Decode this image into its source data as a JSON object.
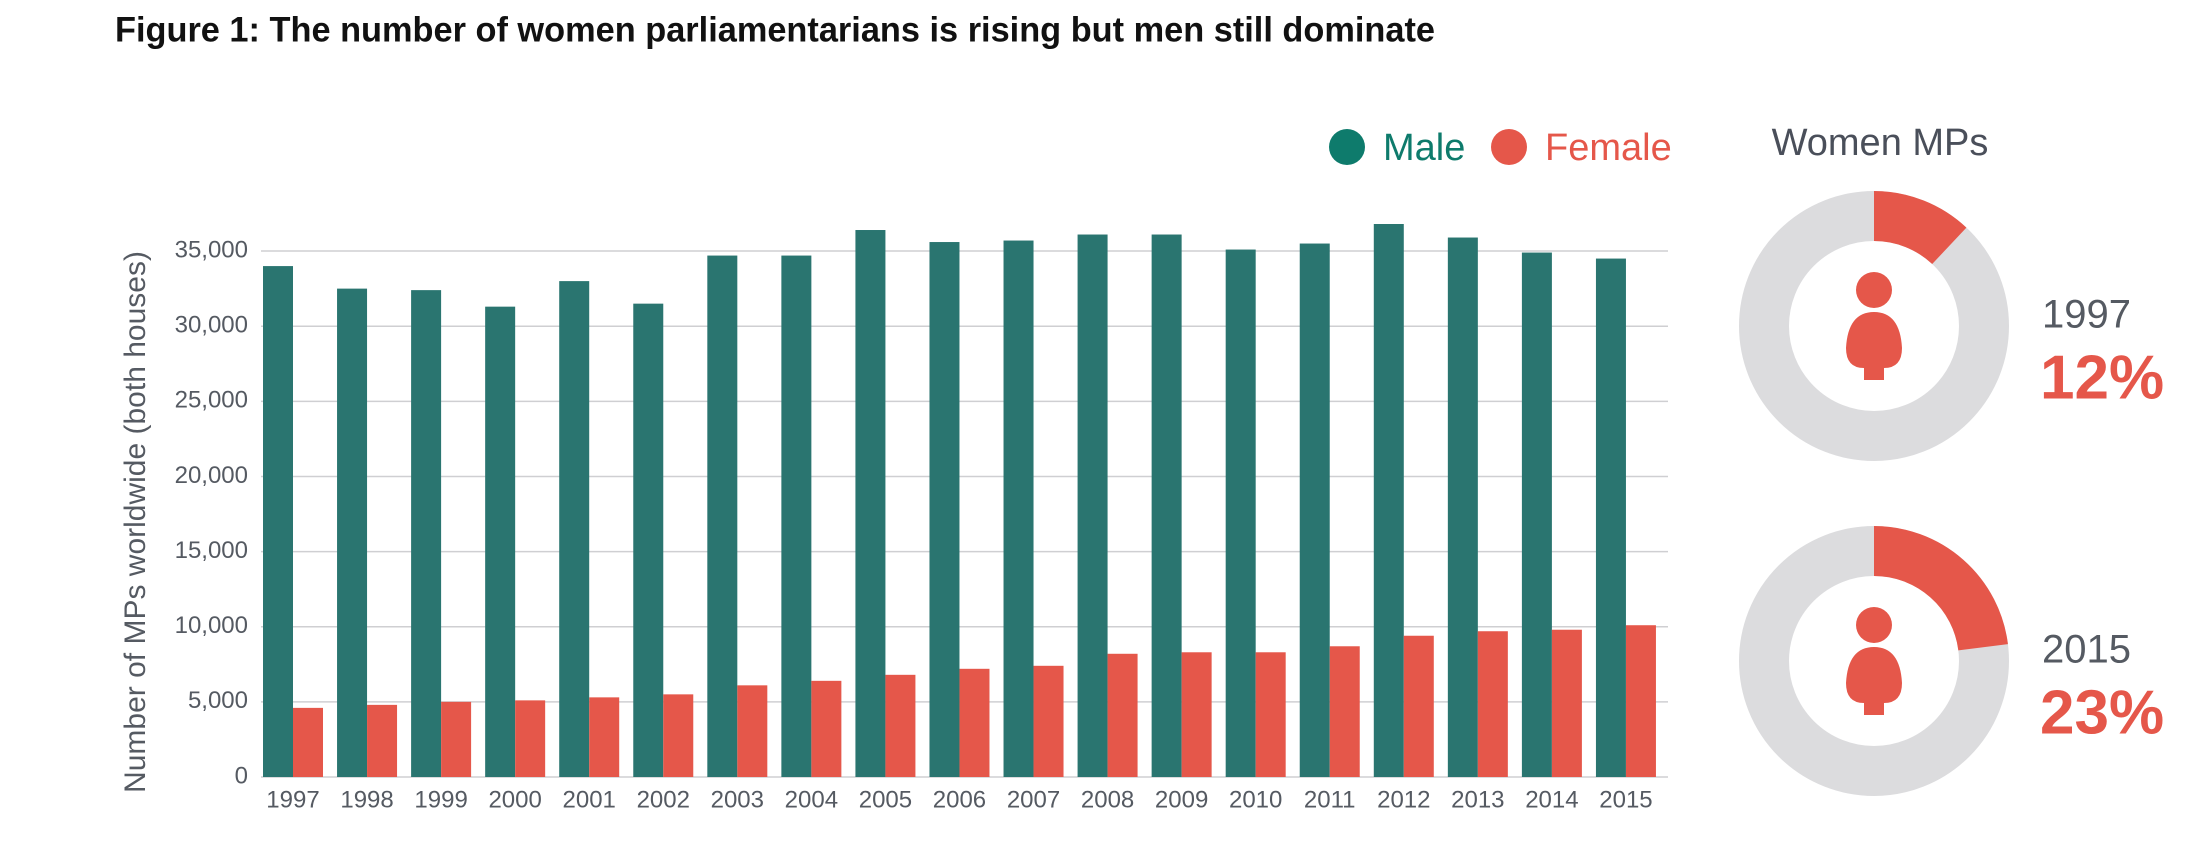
{
  "chart_data": [
    {
      "type": "bar",
      "title": "Figure 1: The number of women parliamentarians is rising but men still dominate",
      "y_label": "Number of MPs worldwide (both houses)",
      "categories": [
        "1997",
        "1998",
        "1999",
        "2000",
        "2001",
        "2002",
        "2003",
        "2004",
        "2005",
        "2006",
        "2007",
        "2008",
        "2009",
        "2010",
        "2011",
        "2012",
        "2013",
        "2014",
        "2015"
      ],
      "series": [
        {
          "name": "Male",
          "color": "#2a7570",
          "legend_color": "#0e7b6c",
          "values": [
            34000,
            32500,
            32400,
            31300,
            33000,
            31500,
            34700,
            34700,
            36400,
            35600,
            35700,
            36100,
            36100,
            35100,
            35500,
            36800,
            35900,
            34900,
            34500
          ]
        },
        {
          "name": "Female",
          "color": "#e5574a",
          "legend_color": "#e5574a",
          "values": [
            4600,
            4800,
            5000,
            5100,
            5300,
            5500,
            6100,
            6400,
            6800,
            7200,
            7400,
            8200,
            8300,
            8300,
            8700,
            9400,
            9700,
            9800,
            10100
          ]
        }
      ],
      "ylim": [
        0,
        37000
      ],
      "yticks": [
        0,
        {
          "value": 5000,
          "label": "5,000"
        },
        {
          "value": 10000,
          "label": "10,000"
        },
        {
          "value": 15000,
          "label": "15,000"
        },
        {
          "value": 20000,
          "label": "20,000"
        },
        {
          "value": 25000,
          "label": "25,000"
        },
        {
          "value": 30000,
          "label": "30,000"
        },
        {
          "value": 35000,
          "label": "35,000"
        }
      ],
      "grid": true
    },
    {
      "type": "donut",
      "title": "Women MPs",
      "categories": [
        "1997",
        "2015"
      ],
      "values": [
        12,
        23
      ],
      "value_labels": [
        "12%",
        "23%"
      ],
      "color": "#e5574a",
      "track_color": "#dcdcde"
    }
  ]
}
